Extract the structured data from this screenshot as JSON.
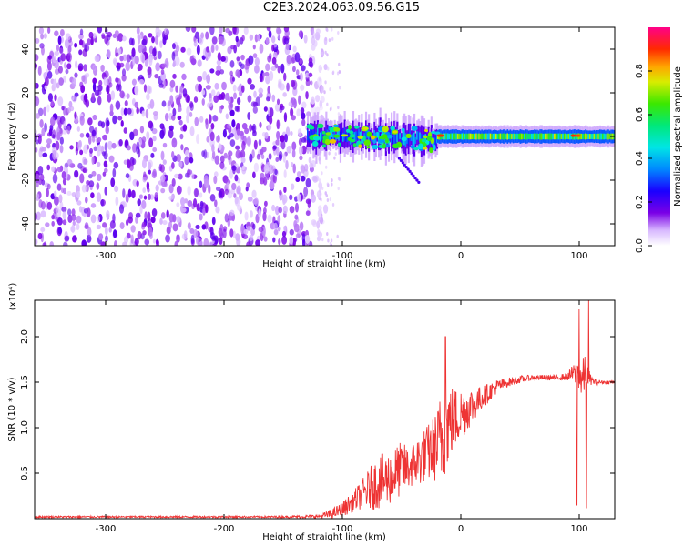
{
  "title": "C2E3.2024.063.09.56.G15",
  "chart_data": [
    {
      "type": "heatmap",
      "xlabel": "Height of straight line (km)",
      "ylabel": "Frequency (Hz)",
      "xlim": [
        -360,
        130
      ],
      "ylim": [
        -50,
        50
      ],
      "xticks": [
        -300,
        -200,
        -100,
        0,
        100
      ],
      "xtick_labels": [
        "-300",
        "-200",
        "-100",
        "0",
        "100"
      ],
      "yticks": [
        -40,
        -20,
        0,
        20,
        40
      ],
      "ytick_labels": [
        "-40",
        "-20",
        "0",
        "20",
        "40"
      ],
      "colorbar": {
        "label": "Normalized spectral amplitude",
        "range": [
          0,
          1
        ],
        "ticks": [
          0.0,
          0.2,
          0.4,
          0.6,
          0.8
        ],
        "tick_labels": [
          "0.0",
          "0.2",
          "0.4",
          "0.6",
          "0.8"
        ],
        "colormap": "white-purple-blue-cyan-green-yellow-red-magenta"
      },
      "regions": [
        {
          "x_range": [
            -360,
            -120
          ],
          "freq_range": [
            -50,
            50
          ],
          "pattern": "broadband noise",
          "amplitude": 0.05
        },
        {
          "x_range": [
            -130,
            -20
          ],
          "freq_center": 0,
          "freq_halfwidth": 5,
          "pattern": "ragged band",
          "amplitude": 0.4
        },
        {
          "x_range": [
            -20,
            130
          ],
          "freq_center": 0,
          "freq_halfwidth": 3,
          "pattern": "steady band",
          "amplitude": 0.7
        }
      ]
    },
    {
      "type": "line",
      "xlabel": "Height of straight line (km)",
      "ylabel": "SNR (10 * v/v)",
      "scale_label": "(x10⁴)",
      "xlim": [
        -360,
        130
      ],
      "ylim": [
        0,
        2.4
      ],
      "xticks": [
        -300,
        -200,
        -100,
        0,
        100
      ],
      "xtick_labels": [
        "-300",
        "-200",
        "-100",
        "0",
        "100"
      ],
      "yticks": [
        0.5,
        1.0,
        1.5,
        2.0
      ],
      "ytick_labels": [
        "0.5",
        "1.0",
        "1.5",
        "2.0"
      ],
      "color": "#ee3333",
      "series": [
        {
          "x": [
            -360,
            -300,
            -250,
            -200,
            -150,
            -120,
            -110,
            -100,
            -95,
            -90,
            -85,
            -80,
            -75,
            -70,
            -65,
            -60,
            -55,
            -50,
            -45,
            -40,
            -35,
            -30,
            -25,
            -20,
            -18,
            -15,
            -13,
            -10,
            -5,
            0,
            5,
            10,
            15,
            20,
            25,
            30,
            40,
            50,
            60,
            70,
            80,
            90,
            95,
            98,
            100,
            102,
            105,
            108,
            110,
            115,
            120,
            130
          ],
          "y": [
            0.02,
            0.02,
            0.02,
            0.02,
            0.02,
            0.025,
            0.05,
            0.1,
            0.15,
            0.2,
            0.25,
            0.3,
            0.35,
            0.4,
            0.42,
            0.45,
            0.5,
            0.55,
            0.55,
            0.6,
            0.65,
            0.7,
            0.75,
            0.8,
            0.85,
            0.9,
            1.0,
            1.05,
            1.1,
            1.15,
            1.2,
            1.25,
            1.3,
            1.35,
            1.4,
            1.45,
            1.5,
            1.53,
            1.55,
            1.55,
            1.55,
            1.56,
            1.6,
            1.58,
            1.62,
            1.5,
            1.6,
            1.55,
            1.52,
            1.5,
            1.5,
            1.5
          ],
          "noise_amplitude": [
            0.01,
            0.01,
            0.01,
            0.01,
            0.01,
            0.02,
            0.05,
            0.08,
            0.1,
            0.12,
            0.15,
            0.2,
            0.25,
            0.3,
            0.3,
            0.3,
            0.3,
            0.3,
            0.25,
            0.25,
            0.3,
            0.3,
            0.35,
            0.4,
            0.5,
            0.55,
            0.5,
            0.45,
            0.35,
            0.3,
            0.25,
            0.2,
            0.15,
            0.12,
            0.1,
            0.08,
            0.05,
            0.04,
            0.03,
            0.03,
            0.03,
            0.04,
            0.1,
            0.15,
            0.2,
            0.25,
            0.2,
            0.1,
            0.05,
            0.03,
            0.02,
            0.02
          ]
        }
      ],
      "spikes": [
        {
          "x": -13,
          "y": 2.0
        },
        {
          "x": 98,
          "y": 0.15
        },
        {
          "x": 100,
          "y": 2.3
        },
        {
          "x": 106,
          "y": 0.12
        },
        {
          "x": 108,
          "y": 2.4
        }
      ]
    }
  ]
}
